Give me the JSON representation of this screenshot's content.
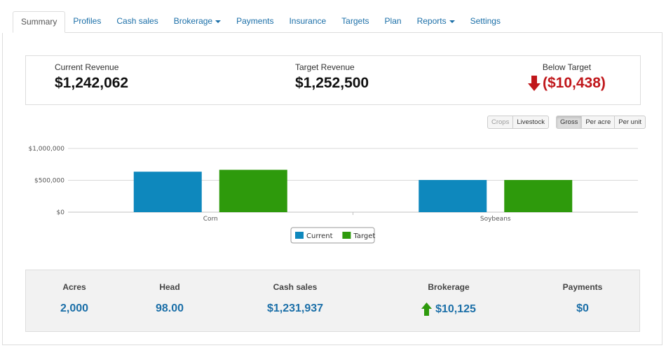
{
  "tabs": [
    {
      "label": "Summary",
      "active": true
    },
    {
      "label": "Profiles"
    },
    {
      "label": "Cash sales"
    },
    {
      "label": "Brokerage",
      "dropdown": true
    },
    {
      "label": "Payments"
    },
    {
      "label": "Insurance"
    },
    {
      "label": "Targets"
    },
    {
      "label": "Plan"
    },
    {
      "label": "Reports",
      "dropdown": true
    },
    {
      "label": "Settings"
    }
  ],
  "revenue": {
    "current_label": "Current Revenue",
    "current_value": "$1,242,062",
    "target_label": "Target Revenue",
    "target_value": "$1,252,500",
    "below_label": "Below Target",
    "below_value": "($10,438)",
    "below_icon": "arrow-down-icon",
    "below_color": "#c0171b"
  },
  "controls": {
    "type_group": [
      {
        "label": "Crops",
        "pressed": false
      },
      {
        "label": "Livestock",
        "pressed": false
      }
    ],
    "measure_group": [
      {
        "label": "Gross",
        "pressed": true
      },
      {
        "label": "Per acre",
        "pressed": false
      },
      {
        "label": "Per unit",
        "pressed": false
      }
    ]
  },
  "chart_data": {
    "type": "bar",
    "categories": [
      "Corn",
      "Soybeans"
    ],
    "series": [
      {
        "name": "Current",
        "color": "#0e88bd",
        "values": [
          635000,
          505000
        ]
      },
      {
        "name": "Target",
        "color": "#2e9a0c",
        "values": [
          665000,
          505000
        ]
      }
    ],
    "yticks": [
      {
        "value": 0,
        "label": "$0"
      },
      {
        "value": 500000,
        "label": "$500,000"
      },
      {
        "value": 1000000,
        "label": "$1,000,000"
      }
    ],
    "ylim": [
      0,
      1000000
    ],
    "grid": true,
    "legend": "bottom-center"
  },
  "stats": [
    {
      "label": "Acres",
      "value": "2,000"
    },
    {
      "label": "Head",
      "value": "98.00"
    },
    {
      "label": "Cash sales",
      "value": "$1,231,937"
    },
    {
      "label": "Brokerage",
      "value": "$10,125",
      "icon": "arrow-up-icon",
      "icon_color": "#2e9a0c"
    },
    {
      "label": "Payments",
      "value": "$0"
    }
  ]
}
